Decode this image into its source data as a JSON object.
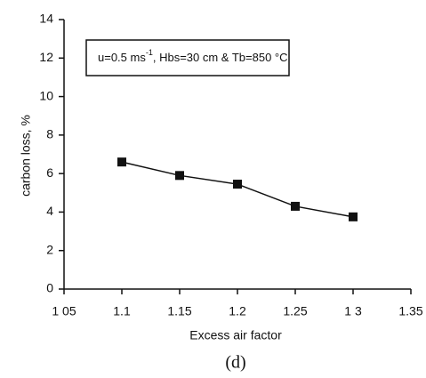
{
  "chart_data": {
    "type": "line",
    "x_label": "Excess air factor",
    "y_label": "carbon loss, %",
    "caption": "(d)",
    "annotation": {
      "main": "u=0.5 ms",
      "superscript": "-1",
      "rest": ", Hbs=30 cm & Tb=850 °C"
    },
    "x": [
      1.1,
      1.15,
      1.2,
      1.25,
      1.3
    ],
    "series": [
      {
        "color": "#111111",
        "values": [
          6.6,
          5.9,
          5.45,
          4.3,
          3.75
        ]
      }
    ],
    "xlim": [
      1.05,
      1.35
    ],
    "xticks": [
      {
        "value": 1.05,
        "label": "1 05"
      },
      1.1,
      1.15,
      1.2,
      1.25,
      {
        "value": 1.3,
        "label": "1 3"
      },
      1.35
    ],
    "ylim": [
      0,
      14
    ],
    "yticks": [
      0,
      2,
      4,
      6,
      8,
      10,
      12,
      14
    ]
  }
}
